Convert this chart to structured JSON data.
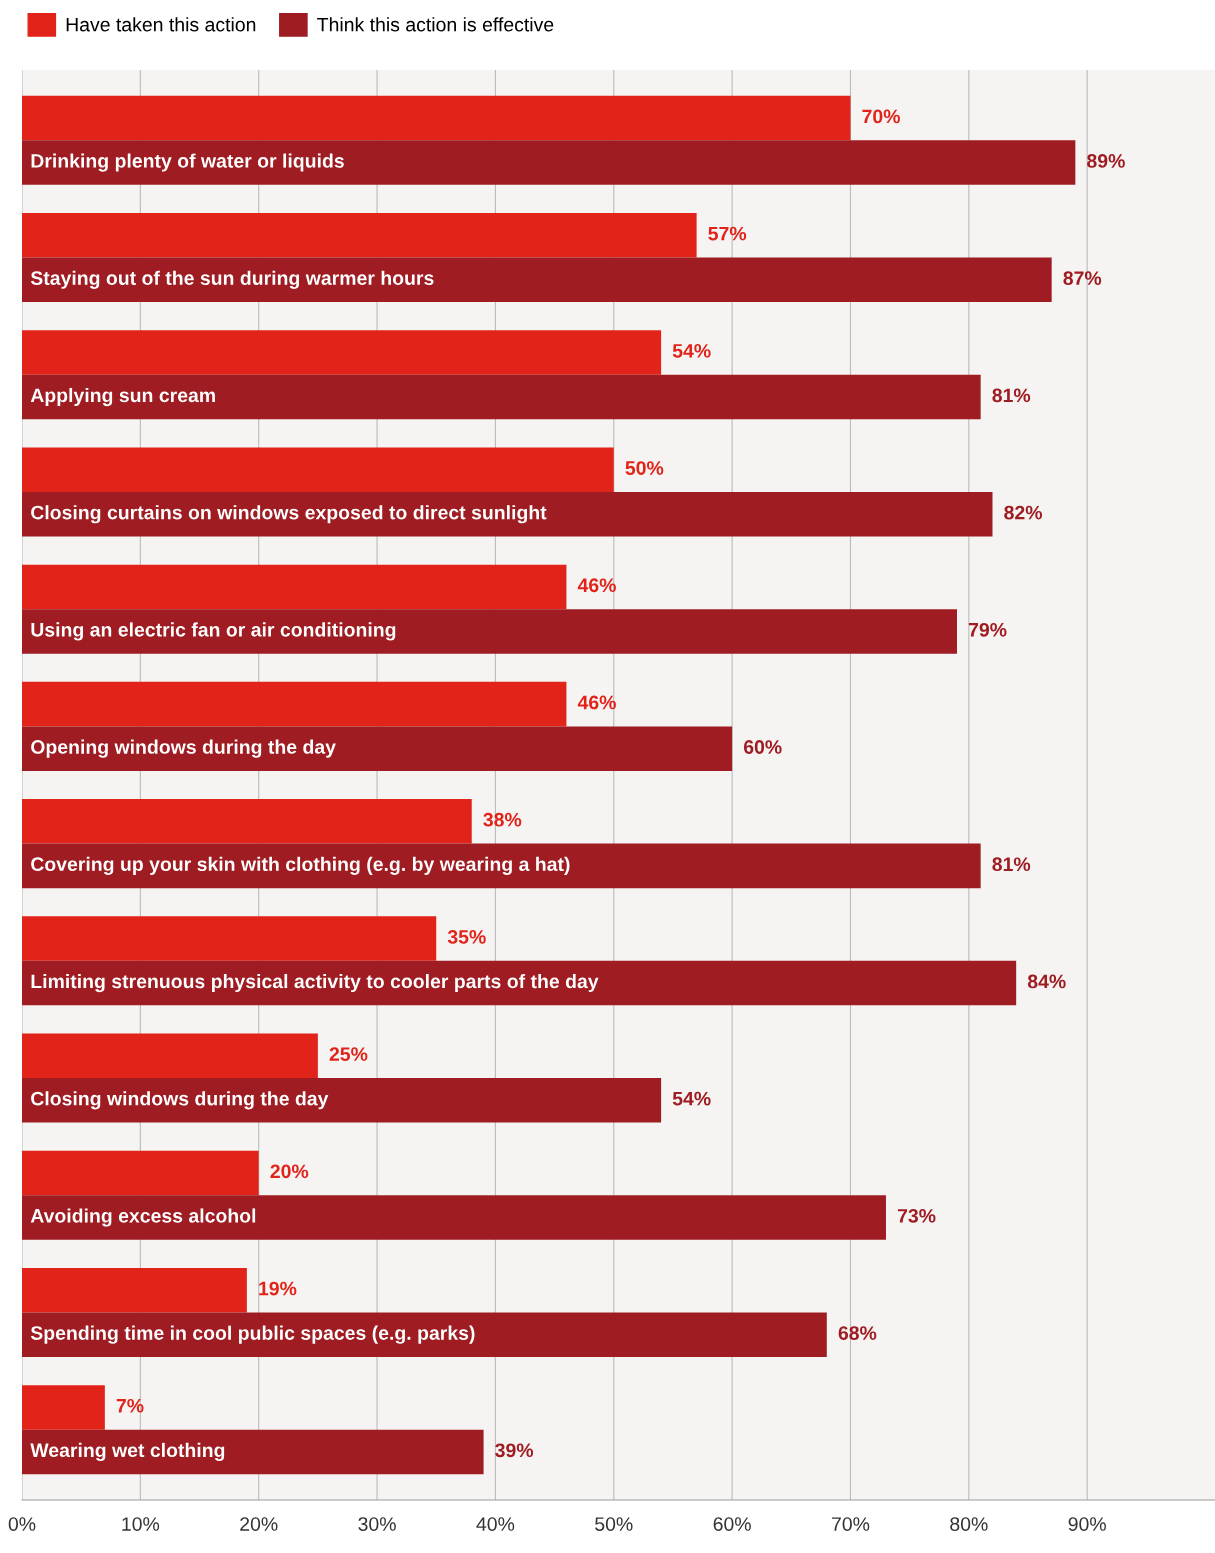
{
  "chart_data": {
    "type": "bar",
    "orientation": "horizontal",
    "categories": [
      "Drinking plenty of water or liquids",
      "Staying out of the sun during warmer hours",
      "Applying sun cream",
      "Closing curtains on windows exposed to direct sunlight",
      "Using an electric fan or air conditioning",
      "Opening windows during the day",
      "Covering up your skin with clothing (e.g. by wearing a hat)",
      "Limiting strenuous physical activity to cooler parts of the day",
      "Closing windows during the day",
      "Avoiding excess alcohol",
      "Spending time in cool public spaces (e.g. parks)",
      "Wearing wet clothing"
    ],
    "series": [
      {
        "name": "Have taken this action",
        "color": "#e2231a",
        "values": [
          70,
          57,
          54,
          50,
          46,
          46,
          38,
          35,
          25,
          20,
          19,
          7
        ],
        "value_labels": [
          "70%",
          "57%",
          "54%",
          "50%",
          "46%",
          "46%",
          "38%",
          "35%",
          "25%",
          "20%",
          "19%",
          "7%"
        ]
      },
      {
        "name": "Think this action is effective",
        "color": "#9e1c22",
        "values": [
          89,
          87,
          81,
          82,
          79,
          60,
          81,
          84,
          54,
          73,
          68,
          39
        ],
        "value_labels": [
          "89%",
          "87%",
          "81%",
          "82%",
          "79%",
          "60%",
          "81%",
          "84%",
          "54%",
          "73%",
          "68%",
          "39%"
        ]
      }
    ],
    "xlim": [
      0,
      100.8
    ],
    "xticks": [
      {
        "value": 0,
        "label": "0%"
      },
      {
        "value": 10,
        "label": "10%"
      },
      {
        "value": 20,
        "label": "20%"
      },
      {
        "value": 30,
        "label": "30%"
      },
      {
        "value": 40,
        "label": "40%"
      },
      {
        "value": 50,
        "label": "50%"
      },
      {
        "value": 60,
        "label": "60%"
      },
      {
        "value": 70,
        "label": "70%"
      },
      {
        "value": 80,
        "label": "80%"
      },
      {
        "value": 90,
        "label": "90%"
      }
    ],
    "grid": "x",
    "legend": "top left"
  }
}
